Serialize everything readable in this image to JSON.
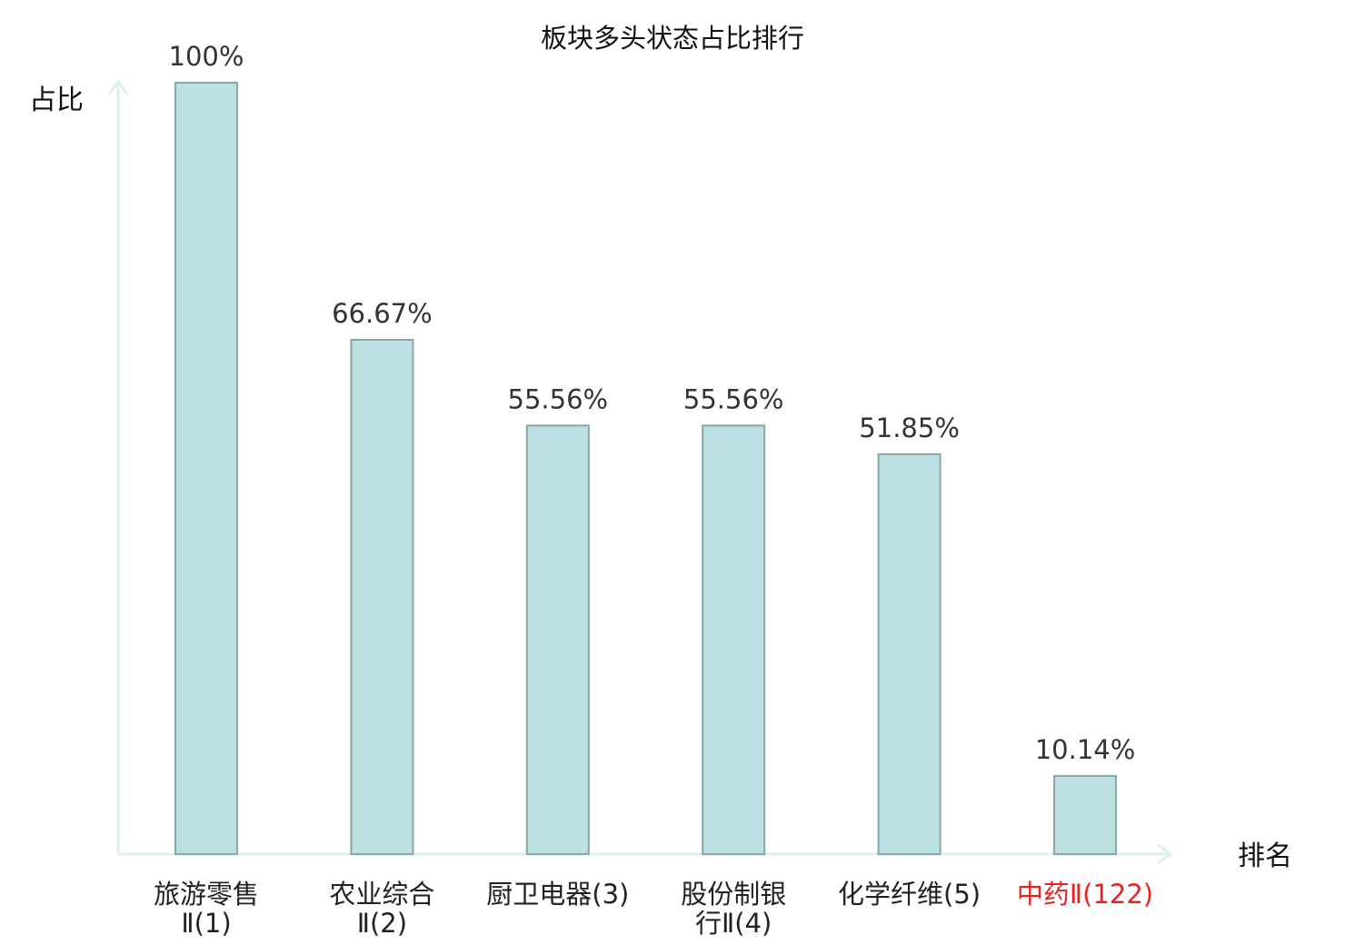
{
  "chart_data": {
    "type": "bar",
    "title": "板块多头状态占比排行",
    "xlabel": "排名",
    "ylabel": "占比",
    "ylim": [
      0,
      100
    ],
    "grid": false,
    "categories": [
      [
        "旅游零售",
        "Ⅱ(1)"
      ],
      [
        "农业综合",
        "Ⅱ(2)"
      ],
      [
        "厨卫电器(3)"
      ],
      [
        "股份制银",
        "行Ⅱ(4)"
      ],
      [
        "化学纤维(5)"
      ],
      [
        "中药Ⅱ(122)"
      ]
    ],
    "values": [
      100,
      66.67,
      55.56,
      55.56,
      51.85,
      10.14
    ],
    "value_labels": [
      "100%",
      "66.67%",
      "55.56%",
      "55.56%",
      "51.85%",
      "10.14%"
    ],
    "highlight_index": 5,
    "colors": {
      "bar_fill": "#bde0e2",
      "bar_stroke": "#87a7aa",
      "axis": "#dff1ee",
      "label_default": "#222222",
      "label_highlight": "#e8231f"
    }
  }
}
